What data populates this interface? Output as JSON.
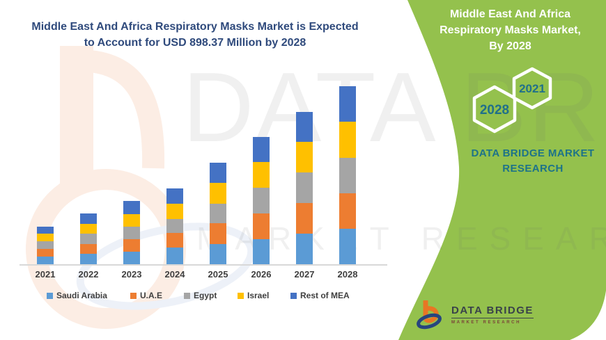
{
  "header": {
    "title_line1": "Middle East And Africa Respiratory Masks Market is Expected",
    "title_line2": "to Account for USD 898.37 Million by 2028"
  },
  "side_panel": {
    "title_line1": "Middle East And Africa",
    "title_line2": "Respiratory Masks Market,",
    "title_line3": "By 2028",
    "hexagons": [
      {
        "label": "2028"
      },
      {
        "label": "2021"
      }
    ],
    "brand_line1": "DATA BRIDGE MARKET",
    "brand_line2": "RESEARCH",
    "colors": {
      "panel_green": "#94C14D",
      "teal_text": "#1D7389",
      "hexagon_outline": "#FFFFFF"
    }
  },
  "watermark": {
    "line1": "DATA BRIDGE",
    "line2": "MARKET RESEARCH"
  },
  "footer_logo": {
    "name": "DATA BRIDGE",
    "sub": "MARKET RESEARCH",
    "colors": {
      "orange": "#E87624",
      "navy": "#27457E",
      "name_text": "#39424A",
      "sub_text": "#7A4238"
    }
  },
  "chart_data": {
    "type": "bar",
    "stacked": true,
    "title": "",
    "xlabel": "",
    "ylabel": "",
    "y_axis_visible": false,
    "grid": false,
    "legend_position": "bottom",
    "unit": "relative height (px, no value axis shown)",
    "categories": [
      "2021",
      "2022",
      "2023",
      "2024",
      "2025",
      "2026",
      "2027",
      "2028"
    ],
    "series": [
      {
        "name": "Saudi Arabia",
        "color": "#5B9BD5",
        "values": [
          11,
          15,
          18,
          24,
          29,
          36,
          44,
          51
        ]
      },
      {
        "name": "U.A.E",
        "color": "#ED7D31",
        "values": [
          11,
          14,
          18,
          21,
          30,
          37,
          44,
          51
        ]
      },
      {
        "name": "Egypt",
        "color": "#A5A5A5",
        "values": [
          11,
          15,
          18,
          20,
          28,
          37,
          44,
          51
        ]
      },
      {
        "name": "Israel",
        "color": "#FFC000",
        "values": [
          11,
          14,
          18,
          22,
          30,
          37,
          44,
          52
        ]
      },
      {
        "name": "Rest of MEA",
        "color": "#4472C4",
        "values": [
          10,
          15,
          19,
          22,
          29,
          36,
          43,
          51
        ]
      }
    ],
    "axis_labels_color": "#3F3F3F",
    "axis_line_color": "#D8D8D8"
  }
}
